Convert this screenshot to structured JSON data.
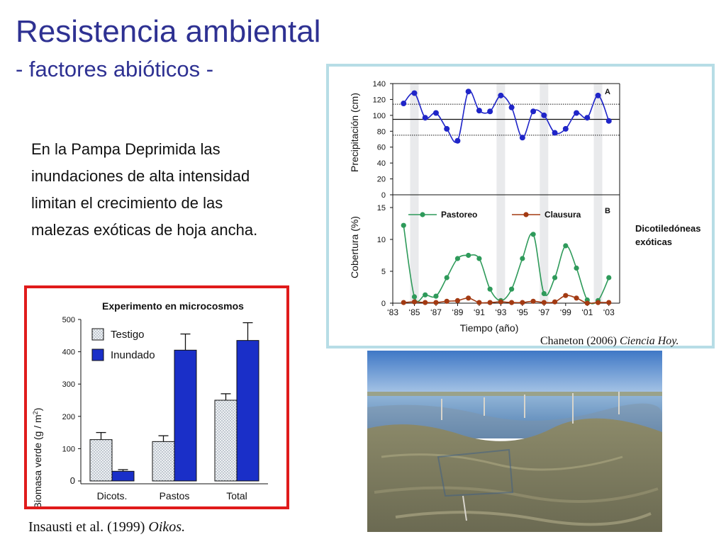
{
  "slide": {
    "title": "Resistencia ambiental",
    "subtitle": "- factores abióticos -",
    "paragraph_lines": [
      "En la Pampa Deprimida las",
      "inundaciones de alta intensidad",
      "limitan el crecimiento de las",
      "malezas exóticas de hoja ancha."
    ],
    "citation_left": {
      "authors": "Insausti et al. (1999)",
      "journal": "Oikos."
    },
    "citation_right": {
      "authors": "Chaneton (2006)",
      "journal": "Ciencia Hoy."
    },
    "side_label": [
      "Dicotiledóneas",
      "exóticas"
    ]
  },
  "chart_data": [
    {
      "type": "bar",
      "title": "Experimento en microcosmos",
      "ylabel": "Biomasa verde (g / m2)",
      "ylabel_main": "Biomasa verde (g / m",
      "ylabel_sup": "2",
      "ylabel_end": ")",
      "categories": [
        "Dicots.",
        "Pastos",
        "Total"
      ],
      "ylim": [
        0,
        500
      ],
      "yticks": [
        "0",
        "100",
        "200",
        "300",
        "400",
        "500"
      ],
      "yticks_values": [
        0,
        100,
        200,
        300,
        400,
        500
      ],
      "series": [
        {
          "name": "Testigo",
          "values": [
            128,
            122,
            250
          ],
          "errors": [
            22,
            18,
            20
          ],
          "color": "#e8ecef",
          "pattern": "dotted"
        },
        {
          "name": "Inundado",
          "values": [
            30,
            405,
            435
          ],
          "errors": [
            5,
            50,
            55
          ],
          "color": "#1a2fc8"
        }
      ],
      "legend_position": "top-left"
    },
    {
      "type": "line",
      "panel": "A",
      "ylabel": "Precipitación (cm)",
      "ylim": [
        0,
        140
      ],
      "yticks": [
        "0",
        "20",
        "40",
        "60",
        "80",
        "100",
        "120",
        "140"
      ],
      "yticks_values": [
        0,
        20,
        40,
        60,
        80,
        100,
        120,
        140
      ],
      "reference_lines": [
        {
          "y": 95,
          "style": "solid"
        },
        {
          "y": 114,
          "style": "dotted"
        },
        {
          "y": 75,
          "style": "dotted"
        }
      ],
      "color": "#1f25c8",
      "series": [
        {
          "x": [
            1984,
            1985,
            1986,
            1987,
            1988,
            1989,
            1990,
            1991,
            1992,
            1993,
            1994,
            1995,
            1996,
            1997,
            1998,
            1999,
            2000,
            2001,
            2002,
            2003
          ],
          "values": [
            115,
            128,
            97,
            103,
            83,
            68,
            130,
            106,
            105,
            125,
            110,
            72,
            105,
            100,
            78,
            83,
            103,
            97,
            125,
            93
          ]
        }
      ]
    },
    {
      "type": "line",
      "panel": "B",
      "ylabel": "Cobertura (%)",
      "xlabel": "Tiempo (año)",
      "ylim": [
        0,
        17
      ],
      "yticks": [
        "0",
        "5",
        "10",
        "15"
      ],
      "yticks_values": [
        0,
        5,
        10,
        15
      ],
      "xticks": [
        "‘83",
        "‘85",
        "‘87",
        "‘89",
        "‘91",
        "‘93",
        "‘95",
        "‘97",
        "‘99",
        "‘01",
        "‘03"
      ],
      "xticks_values": [
        1983,
        1985,
        1987,
        1989,
        1991,
        1993,
        1995,
        1997,
        1999,
        2001,
        2003
      ],
      "highlight_years": [
        1985,
        1993,
        1997,
        2002
      ],
      "legend_position": "top",
      "series": [
        {
          "name": "Pastoreo",
          "color": "#2e9a5a",
          "x": [
            1984,
            1985,
            1986,
            1987,
            1988,
            1989,
            1990,
            1991,
            1992,
            1993,
            1994,
            1995,
            1996,
            1997,
            1998,
            1999,
            2000,
            2001,
            2002,
            2003
          ],
          "values": [
            12.2,
            1.0,
            1.3,
            1.1,
            4.0,
            7.0,
            7.5,
            7.0,
            2.2,
            0.4,
            2.2,
            7.0,
            10.8,
            1.5,
            4.0,
            9.0,
            5.5,
            0.5,
            0.4,
            4.0
          ]
        },
        {
          "name": "Clausura",
          "color": "#a33a12",
          "x": [
            1984,
            1985,
            1986,
            1987,
            1988,
            1989,
            1990,
            1991,
            1992,
            1993,
            1994,
            1995,
            1996,
            1997,
            1998,
            1999,
            2000,
            2001,
            2002,
            2003
          ],
          "values": [
            0.1,
            0.2,
            0.1,
            0.1,
            0.3,
            0.4,
            0.8,
            0.1,
            0.1,
            0.2,
            0.1,
            0.1,
            0.3,
            0.1,
            0.2,
            1.2,
            0.8,
            0.0,
            0.1,
            0.1
          ]
        }
      ]
    }
  ]
}
